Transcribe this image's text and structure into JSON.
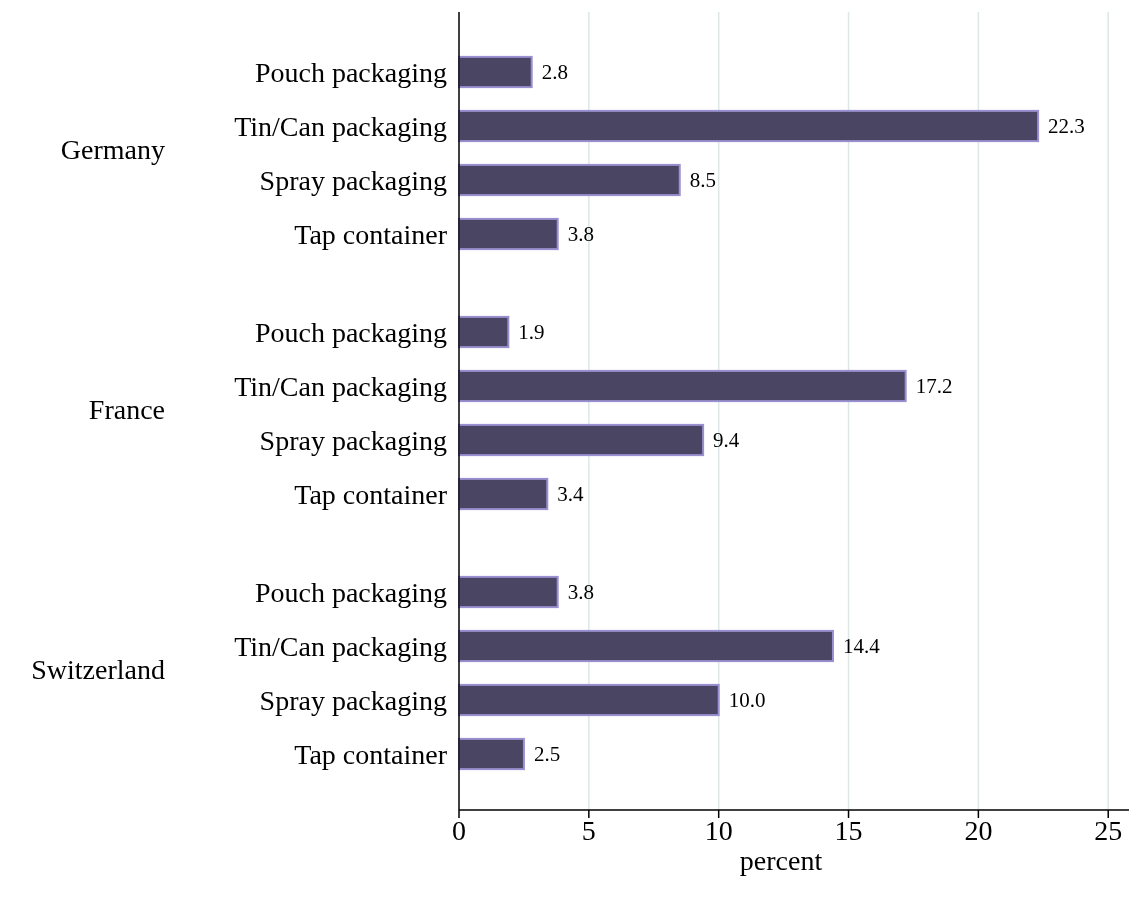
{
  "chart_data": [
    {
      "type": "bar",
      "orientation": "horizontal",
      "title": "Germany",
      "categories": [
        "Pouch packaging",
        "Tin/Can packaging",
        "Spray packaging",
        "Tap container"
      ],
      "values": [
        2.8,
        22.3,
        8.5,
        3.8
      ],
      "value_labels": [
        "2.8",
        "22.3",
        "8.5",
        "3.8"
      ],
      "color": "#4a4563",
      "grid": "x",
      "tick_labels": "y"
    },
    {
      "type": "bar",
      "orientation": "horizontal",
      "title": "France",
      "categories": [
        "Pouch packaging",
        "Tin/Can packaging",
        "Spray packaging",
        "Tap container"
      ],
      "values": [
        1.9,
        17.2,
        9.4,
        3.4
      ],
      "value_labels": [
        "1.9",
        "17.2",
        "9.4",
        "3.4"
      ],
      "color": "#4a4563",
      "grid": "x",
      "tick_labels": "y"
    },
    {
      "type": "bar",
      "orientation": "horizontal",
      "title": "Switzerland",
      "categories": [
        "Pouch packaging",
        "Tin/Can packaging",
        "Spray packaging",
        "Tap container"
      ],
      "values": [
        3.8,
        14.4,
        10.0,
        2.5
      ],
      "value_labels": [
        "3.8",
        "14.4",
        "10.0",
        "2.5"
      ],
      "color": "#4a4563",
      "xlim": [
        0,
        25.8
      ],
      "xticks": [
        0,
        5,
        10,
        15,
        20,
        25
      ],
      "grid": "x",
      "xlabel": "percent"
    }
  ]
}
